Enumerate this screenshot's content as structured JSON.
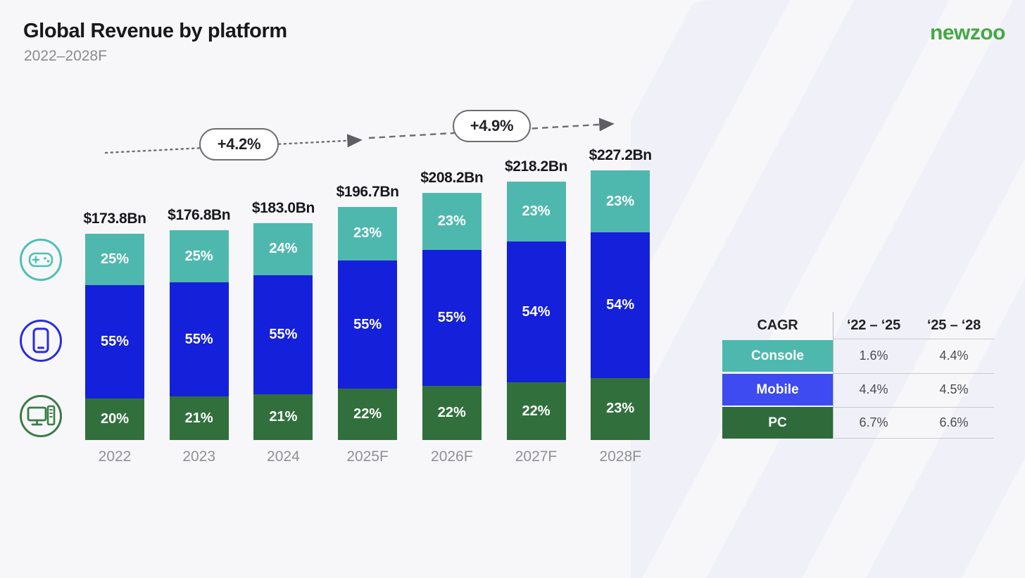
{
  "header": {
    "title": "Global Revenue by platform",
    "subtitle": "2022–2028F"
  },
  "logo": {
    "text": "newzoo",
    "color": "#45a845"
  },
  "chart_data": {
    "type": "bar",
    "stacked": true,
    "title": "Global Revenue by platform",
    "subtitle": "2022–2028F",
    "categories": [
      "2022",
      "2023",
      "2024",
      "2025F",
      "2026F",
      "2027F",
      "2028F"
    ],
    "totals_label": [
      "$173.8Bn",
      "$176.8Bn",
      "$183.0Bn",
      "$196.7Bn",
      "$208.2Bn",
      "$218.2Bn",
      "$227.2Bn"
    ],
    "totals_bn": [
      173.8,
      176.8,
      183.0,
      196.7,
      208.2,
      218.2,
      227.2
    ],
    "unit": "$Bn",
    "grid": false,
    "legend_position": "left-icons",
    "series": [
      {
        "name": "Console",
        "color": "#4fb8ae",
        "values_pct": [
          25,
          25,
          24,
          23,
          23,
          23,
          23
        ]
      },
      {
        "name": "Mobile",
        "color": "#1520da",
        "values_pct": [
          55,
          55,
          55,
          55,
          55,
          54,
          54
        ]
      },
      {
        "name": "PC",
        "color": "#31703c",
        "values_pct": [
          20,
          21,
          21,
          22,
          22,
          22,
          23
        ]
      }
    ],
    "growth_annotations": [
      {
        "label": "+4.2%",
        "span": "2022 to 2025F"
      },
      {
        "label": "+4.9%",
        "span": "2025F to 2028F"
      }
    ]
  },
  "platform_icons": [
    {
      "name": "console-icon",
      "platform": "Console",
      "color": "#4ec0b5"
    },
    {
      "name": "mobile-icon",
      "platform": "Mobile",
      "color": "#2b2be0"
    },
    {
      "name": "pc-icon",
      "platform": "PC",
      "color": "#3c7c46"
    }
  ],
  "cagr_table": {
    "header": "CAGR",
    "columns": [
      "‘22 – ‘25",
      "‘25 – ‘28"
    ],
    "rows": [
      {
        "label": "Console",
        "color": "#4fb8ae",
        "values": [
          "1.6%",
          "4.4%"
        ]
      },
      {
        "label": "Mobile",
        "color": "#3d4bf0",
        "values": [
          "4.4%",
          "4.5%"
        ]
      },
      {
        "label": "PC",
        "color": "#2f6b3a",
        "values": [
          "6.7%",
          "6.6%"
        ]
      }
    ]
  }
}
